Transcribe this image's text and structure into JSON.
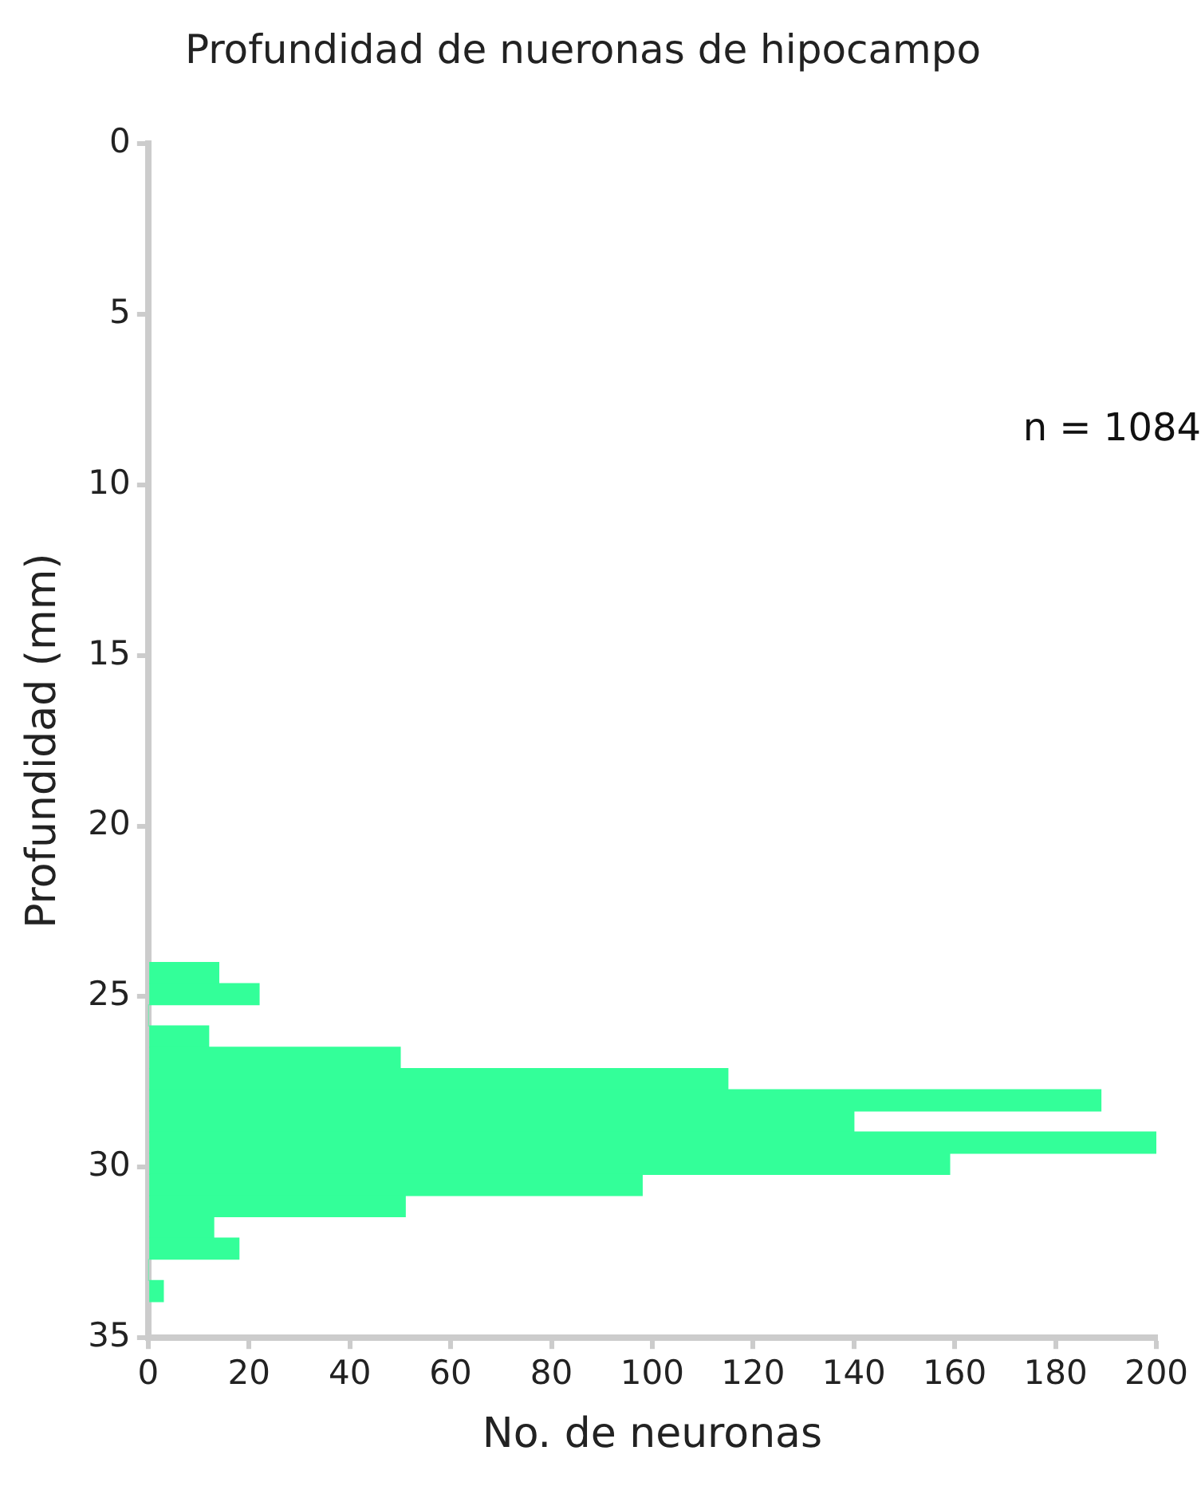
{
  "chart_data": {
    "type": "histogram",
    "orientation": "horizontal",
    "title": "Profundidad de nueronas de hipocampo",
    "xlabel": "No. de neuronas",
    "ylabel": "Profundidad (mm)",
    "bins": [
      24.0,
      24.62,
      25.24,
      25.86,
      26.48,
      27.11,
      27.73,
      28.35,
      28.97,
      29.59,
      30.21,
      30.83,
      31.45,
      32.07,
      32.7,
      33.32,
      33.94
    ],
    "values": [
      14,
      22,
      0,
      12,
      50,
      115,
      189,
      140,
      200,
      159,
      98,
      51,
      13,
      18,
      0,
      3
    ],
    "color": "#33ff99",
    "xlim": [
      0,
      200
    ],
    "xticks": [
      0,
      20,
      40,
      60,
      80,
      100,
      120,
      140,
      160,
      180,
      200
    ],
    "ylim": [
      35,
      0
    ],
    "yticks": [
      0,
      5,
      10,
      15,
      20,
      25,
      30,
      35
    ],
    "annotations": [
      "n = 1084"
    ],
    "grid": false,
    "legend": false
  }
}
